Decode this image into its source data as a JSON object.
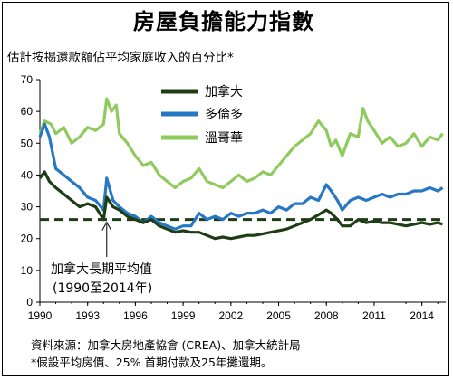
{
  "title": "房屋負擔能力指數",
  "source_text": "資料來源：加拿大房地產協會 (CREA)、加拿大統計局",
  "footnote_text": "*假設平均房價、25% 首期付款及25年攤還期。",
  "chart_data": {
    "type": "line",
    "title": "房屋負擔能力指數",
    "ylabel": "估計按揭還款額佔平均家庭收入的百分比*",
    "xlabel": "",
    "ylim": [
      0,
      70
    ],
    "yticks": [
      0,
      10,
      20,
      30,
      40,
      50,
      60,
      70
    ],
    "xlim": [
      1990,
      2015.5
    ],
    "xticks": [
      "1990",
      "1993",
      "1996",
      "1999",
      "2002",
      "2005",
      "2008",
      "2011",
      "2014"
    ],
    "grid": false,
    "legend_position": "top-center",
    "series": [
      {
        "name": "加拿大",
        "color": "#1e3d14",
        "values": [
          [
            1990,
            39
          ],
          [
            1990.3,
            41
          ],
          [
            1990.6,
            38
          ],
          [
            1991,
            36
          ],
          [
            1991.5,
            34
          ],
          [
            1992,
            32
          ],
          [
            1992.5,
            30
          ],
          [
            1993,
            31
          ],
          [
            1993.5,
            30
          ],
          [
            1994,
            26
          ],
          [
            1994.2,
            33
          ],
          [
            1994.6,
            30
          ],
          [
            1995,
            29
          ],
          [
            1995.5,
            27
          ],
          [
            1996,
            26
          ],
          [
            1996.5,
            25
          ],
          [
            1997,
            26
          ],
          [
            1997.5,
            24
          ],
          [
            1998,
            23
          ],
          [
            1998.5,
            22
          ],
          [
            1999,
            22.5
          ],
          [
            1999.5,
            22
          ],
          [
            2000,
            22
          ],
          [
            2000.5,
            21
          ],
          [
            2001,
            20
          ],
          [
            2001.5,
            20.5
          ],
          [
            2002,
            20
          ],
          [
            2002.5,
            20.5
          ],
          [
            2003,
            21
          ],
          [
            2003.5,
            21
          ],
          [
            2004,
            21.5
          ],
          [
            2004.5,
            22
          ],
          [
            2005,
            22.5
          ],
          [
            2005.5,
            23
          ],
          [
            2006,
            24
          ],
          [
            2006.5,
            25
          ],
          [
            2007,
            26
          ],
          [
            2007.5,
            27.5
          ],
          [
            2008,
            29
          ],
          [
            2008.3,
            28
          ],
          [
            2008.7,
            26
          ],
          [
            2009,
            24
          ],
          [
            2009.5,
            24
          ],
          [
            2010,
            26
          ],
          [
            2010.5,
            25
          ],
          [
            2011,
            25.5
          ],
          [
            2011.5,
            25
          ],
          [
            2012,
            25
          ],
          [
            2012.5,
            24.5
          ],
          [
            2013,
            24
          ],
          [
            2013.5,
            24.5
          ],
          [
            2014,
            25
          ],
          [
            2014.5,
            24.5
          ],
          [
            2015,
            25
          ],
          [
            2015.3,
            24.5
          ]
        ]
      },
      {
        "name": "多倫多",
        "color": "#2677c4",
        "values": [
          [
            1990,
            52
          ],
          [
            1990.3,
            56
          ],
          [
            1990.6,
            52
          ],
          [
            1991,
            42
          ],
          [
            1991.5,
            40
          ],
          [
            1992,
            38
          ],
          [
            1992.5,
            36
          ],
          [
            1993,
            33
          ],
          [
            1993.5,
            32
          ],
          [
            1994,
            29
          ],
          [
            1994.2,
            39
          ],
          [
            1994.6,
            32
          ],
          [
            1995,
            30
          ],
          [
            1995.5,
            28
          ],
          [
            1996,
            27
          ],
          [
            1996.5,
            25
          ],
          [
            1997,
            27
          ],
          [
            1997.5,
            25
          ],
          [
            1998,
            24
          ],
          [
            1998.5,
            23
          ],
          [
            1999,
            24
          ],
          [
            1999.5,
            24
          ],
          [
            2000,
            28
          ],
          [
            2000.5,
            26
          ],
          [
            2001,
            27
          ],
          [
            2001.5,
            26
          ],
          [
            2002,
            28
          ],
          [
            2002.5,
            27
          ],
          [
            2003,
            28
          ],
          [
            2003.5,
            28
          ],
          [
            2004,
            29
          ],
          [
            2004.5,
            28
          ],
          [
            2005,
            30
          ],
          [
            2005.5,
            29
          ],
          [
            2006,
            31
          ],
          [
            2006.5,
            31
          ],
          [
            2007,
            33
          ],
          [
            2007.5,
            32
          ],
          [
            2008,
            37
          ],
          [
            2008.3,
            35
          ],
          [
            2008.7,
            32
          ],
          [
            2009,
            29
          ],
          [
            2009.5,
            32
          ],
          [
            2010,
            33
          ],
          [
            2010.5,
            32
          ],
          [
            2011,
            33
          ],
          [
            2011.5,
            34
          ],
          [
            2012,
            33
          ],
          [
            2012.5,
            34
          ],
          [
            2013,
            34
          ],
          [
            2013.5,
            35
          ],
          [
            2014,
            35
          ],
          [
            2014.5,
            36
          ],
          [
            2015,
            35
          ],
          [
            2015.3,
            36
          ]
        ]
      },
      {
        "name": "溫哥華",
        "color": "#8fcb5c",
        "values": [
          [
            1990,
            53
          ],
          [
            1990.3,
            57
          ],
          [
            1990.7,
            56
          ],
          [
            1991,
            53
          ],
          [
            1991.5,
            55
          ],
          [
            1992,
            50
          ],
          [
            1992.5,
            52
          ],
          [
            1993,
            55
          ],
          [
            1993.5,
            54
          ],
          [
            1994,
            56
          ],
          [
            1994.2,
            64
          ],
          [
            1994.5,
            60
          ],
          [
            1994.8,
            62
          ],
          [
            1995,
            53
          ],
          [
            1995.5,
            50
          ],
          [
            1996,
            46
          ],
          [
            1996.5,
            43
          ],
          [
            1997,
            44
          ],
          [
            1997.5,
            40
          ],
          [
            1998,
            38
          ],
          [
            1998.5,
            36
          ],
          [
            1999,
            38
          ],
          [
            1999.5,
            39
          ],
          [
            2000,
            42
          ],
          [
            2000.5,
            38
          ],
          [
            2001,
            37
          ],
          [
            2001.5,
            36
          ],
          [
            2002,
            38
          ],
          [
            2002.5,
            40
          ],
          [
            2003,
            38
          ],
          [
            2003.5,
            39
          ],
          [
            2004,
            41
          ],
          [
            2004.5,
            40
          ],
          [
            2005,
            43
          ],
          [
            2005.5,
            46
          ],
          [
            2006,
            49
          ],
          [
            2006.5,
            51
          ],
          [
            2007,
            53
          ],
          [
            2007.5,
            57
          ],
          [
            2008,
            54
          ],
          [
            2008.3,
            49
          ],
          [
            2008.6,
            51
          ],
          [
            2009,
            46
          ],
          [
            2009.5,
            53
          ],
          [
            2010,
            52
          ],
          [
            2010.3,
            61
          ],
          [
            2010.6,
            57
          ],
          [
            2011,
            54
          ],
          [
            2011.5,
            50
          ],
          [
            2012,
            52
          ],
          [
            2012.5,
            49
          ],
          [
            2013,
            50
          ],
          [
            2013.5,
            53
          ],
          [
            2014,
            49
          ],
          [
            2014.5,
            52
          ],
          [
            2015,
            51
          ],
          [
            2015.3,
            53
          ]
        ]
      }
    ],
    "reference_line": {
      "label": "加拿大長期平均值",
      "label_line2": "(1990至2014年)",
      "value": 26,
      "color": "#1e3d14",
      "style": "dashed"
    },
    "annotation_arrow_x": 1994.2
  }
}
